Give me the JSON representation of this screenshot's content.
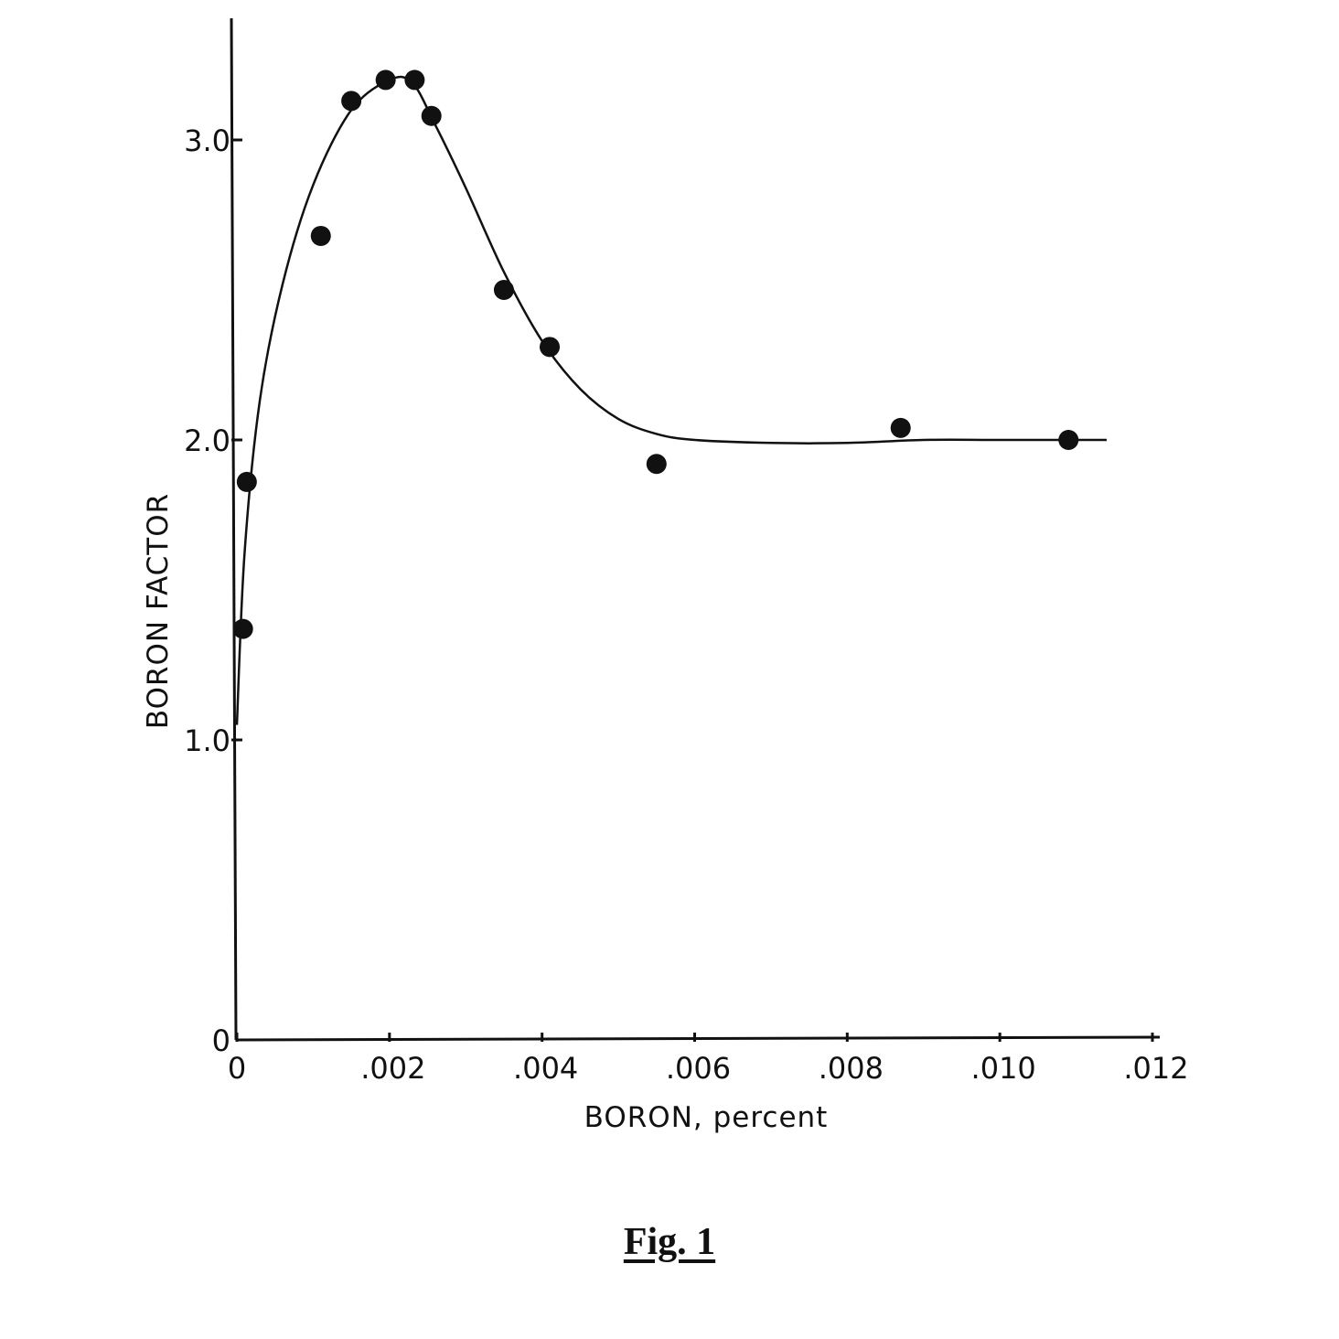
{
  "figure": {
    "caption": "Fig. 1"
  },
  "chart_data": {
    "type": "scatter",
    "xlabel": "BORON, percent",
    "ylabel": "BORON FACTOR",
    "xlim": [
      0,
      0.012
    ],
    "ylim": [
      0,
      3.4
    ],
    "xticks": [
      {
        "value": 0,
        "label": "0"
      },
      {
        "value": 0.002,
        "label": ".002"
      },
      {
        "value": 0.004,
        "label": ".004"
      },
      {
        "value": 0.006,
        "label": ".006"
      },
      {
        "value": 0.008,
        "label": ".008"
      },
      {
        "value": 0.01,
        "label": ".010"
      },
      {
        "value": 0.012,
        "label": ".012"
      }
    ],
    "yticks": [
      {
        "value": 0,
        "label": "0"
      },
      {
        "value": 1.0,
        "label": "1.0"
      },
      {
        "value": 2.0,
        "label": "2.0"
      },
      {
        "value": 3.0,
        "label": "3.0"
      }
    ],
    "grid": false,
    "series": [
      {
        "kind": "points",
        "x": [
          8e-05,
          0.00013,
          0.0011,
          0.0015,
          0.00195,
          0.00233,
          0.00255,
          0.0035,
          0.0041,
          0.0055,
          0.0087,
          0.0109
        ],
        "y": [
          1.37,
          1.86,
          2.68,
          3.13,
          3.2,
          3.2,
          3.08,
          2.5,
          2.31,
          1.92,
          2.04,
          2.0
        ]
      },
      {
        "kind": "fitted-curve",
        "x": [
          0,
          0.0001,
          0.0003,
          0.0006,
          0.001,
          0.0015,
          0.002,
          0.0023,
          0.0026,
          0.003,
          0.0035,
          0.004,
          0.0045,
          0.005,
          0.0055,
          0.006,
          0.007,
          0.008,
          0.009,
          0.01,
          0.0114
        ],
        "y": [
          1.05,
          1.62,
          2.13,
          2.52,
          2.85,
          3.1,
          3.2,
          3.19,
          3.05,
          2.84,
          2.56,
          2.33,
          2.17,
          2.07,
          2.02,
          2.0,
          1.99,
          1.99,
          2.0,
          2.0,
          2.0
        ]
      }
    ]
  }
}
